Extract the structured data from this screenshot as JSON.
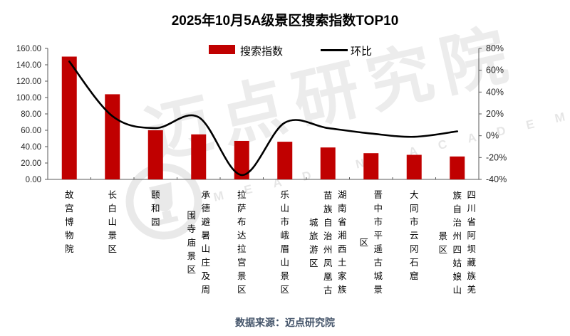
{
  "title": "2025年10月5A级景区搜索指数TOP10",
  "legend": {
    "bar_label": "搜索指数",
    "line_label": "环比"
  },
  "footer": {
    "source": "数据来源：迈点研究院"
  },
  "watermark": {
    "text": "迈点研究院",
    "subtext": "MEADIN ACADEMY"
  },
  "colors": {
    "bar": "#c00000",
    "line": "#000000",
    "axis": "#595959",
    "tick_label": "#262626",
    "footer_text": "#44546a"
  },
  "chart_data": {
    "type": "bar",
    "combo": "bar+line",
    "title": "2025年10月5A级景区搜索指数TOP10",
    "categories": [
      "故宫博物院",
      "长白山景区",
      "颐和园",
      "承德避暑山庄及周围寺庙景区",
      "拉萨布达拉宫景区",
      "乐山市峨眉山景区",
      "湖南省湘西土家族苗族自治州凤凰古城旅游区",
      "晋中市平遥古城景区",
      "大同市云冈石窟",
      "四川省阿坝藏族羌族自治州四姑娘山景区"
    ],
    "series": [
      {
        "name": "搜索指数",
        "type": "bar",
        "axis": "left",
        "values": [
          150,
          104,
          60,
          55,
          47,
          46,
          39,
          32,
          30,
          28
        ]
      },
      {
        "name": "环比",
        "type": "line",
        "axis": "right",
        "unit": "%",
        "values": [
          68,
          18,
          7,
          17,
          -36,
          12,
          7,
          2,
          -1,
          4
        ]
      }
    ],
    "left_axis": {
      "label": "",
      "min": 0,
      "max": 160,
      "step": 20,
      "ticks": [
        "160.00",
        "140.00",
        "120.00",
        "100.00",
        "80.00",
        "60.00",
        "40.00",
        "20.00",
        "0.00"
      ]
    },
    "right_axis": {
      "label": "",
      "min": -40,
      "max": 80,
      "step": 20,
      "ticks": [
        "80%",
        "60%",
        "40%",
        "20%",
        "0%",
        "-20%",
        "-40%"
      ]
    },
    "grid": false,
    "legend_position": "top"
  }
}
